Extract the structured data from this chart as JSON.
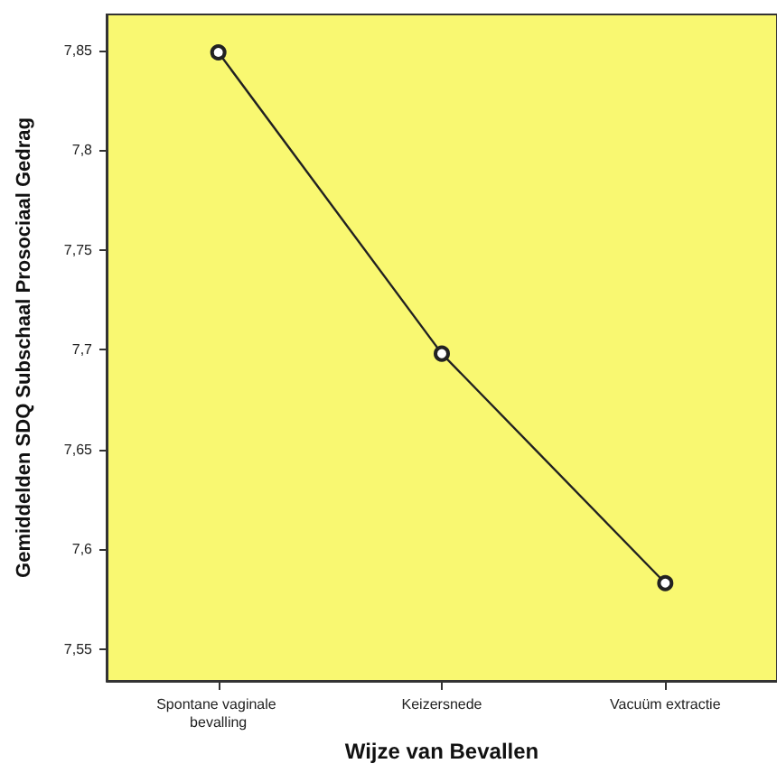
{
  "chart_data": {
    "type": "line",
    "xlabel": "Wijze van Bevallen",
    "ylabel": "Gemiddelden SDQ Subschaal Prosociaal Gedrag",
    "categories": [
      "Spontane vaginale bevalling",
      "Keizersnede",
      "Vacuüm extractie"
    ],
    "series": [
      {
        "color": "#222222",
        "values": [
          7.849,
          7.698,
          7.583
        ]
      }
    ],
    "ylim": [
      7.534,
      7.868
    ],
    "yticks": [
      {
        "value": 7.55,
        "label": "7,55"
      },
      {
        "value": 7.6,
        "label": "7,6"
      },
      {
        "value": 7.65,
        "label": "7,65"
      },
      {
        "value": 7.7,
        "label": "7,7"
      },
      {
        "value": 7.75,
        "label": "7,75"
      },
      {
        "value": 7.8,
        "label": "7,8"
      },
      {
        "value": 7.85,
        "label": "7,85"
      }
    ],
    "marker": "circle",
    "line_style": "solid",
    "grid": false
  }
}
